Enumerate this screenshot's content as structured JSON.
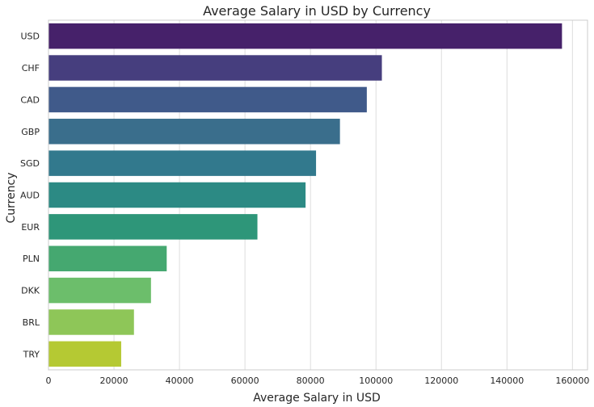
{
  "chart_data": {
    "type": "bar",
    "orientation": "horizontal",
    "title": "Average Salary in USD by Currency",
    "xlabel": "Average Salary in USD",
    "ylabel": "Currency",
    "categories": [
      "USD",
      "CHF",
      "CAD",
      "GBP",
      "SGD",
      "AUD",
      "EUR",
      "PLN",
      "DKK",
      "BRL",
      "TRY"
    ],
    "values": [
      156800,
      101800,
      97200,
      89000,
      81700,
      78500,
      63800,
      36100,
      31300,
      26100,
      22200
    ],
    "xlim": [
      0,
      164600
    ],
    "xticks": [
      0,
      20000,
      40000,
      60000,
      80000,
      100000,
      120000,
      140000,
      160000
    ],
    "xtick_labels": [
      "0",
      "20000",
      "40000",
      "60000",
      "80000",
      "100000",
      "120000",
      "140000",
      "160000"
    ],
    "grid": "vertical",
    "colors": [
      "#46216a",
      "#463e7e",
      "#405a8a",
      "#3a6e8c",
      "#32798d",
      "#2c8a84",
      "#2e9679",
      "#45a870",
      "#6cbe6b",
      "#8ec658",
      "#b5c933"
    ]
  }
}
